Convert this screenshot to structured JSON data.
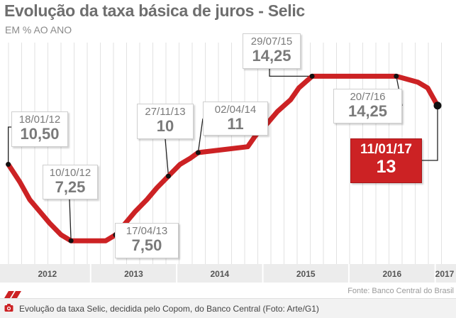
{
  "title": "Evolução da taxa básica de juros - Selic",
  "subtitle": "EM % AO ANO",
  "source": "Fonte: Banco Central do Brasil",
  "caption": "Evolução da taxa Selic, decidida pelo Copom, do Banco Central (Foto: Arte/G1)",
  "colors": {
    "line": "#cc2224",
    "highlight": "#cc2224",
    "axis_band": "#ececec",
    "grid": "#e2e2e2"
  },
  "icons": {
    "caption_icon": "camera-icon"
  },
  "chart_data": {
    "type": "line",
    "title": "Evolução da taxa básica de juros - Selic",
    "subtitle": "EM % AO ANO",
    "xlabel": "",
    "ylabel": "",
    "x_ticks": [
      "2012",
      "2013",
      "2014",
      "2015",
      "2016",
      "2017"
    ],
    "xlim": [
      "2012-01-01",
      "2017-01-11"
    ],
    "ylim": [
      6.5,
      15.5
    ],
    "grid": "vertical",
    "series": [
      {
        "points": [
          {
            "x": "2012-01-18",
            "y": 10.5
          },
          {
            "x": "2012-03-07",
            "y": 9.75
          },
          {
            "x": "2012-04-18",
            "y": 9.0
          },
          {
            "x": "2012-05-30",
            "y": 8.5
          },
          {
            "x": "2012-07-11",
            "y": 8.0
          },
          {
            "x": "2012-08-29",
            "y": 7.5
          },
          {
            "x": "2012-10-10",
            "y": 7.25
          },
          {
            "x": "2013-01-16",
            "y": 7.25
          },
          {
            "x": "2013-03-06",
            "y": 7.25
          },
          {
            "x": "2013-04-17",
            "y": 7.5
          },
          {
            "x": "2013-05-29",
            "y": 8.0
          },
          {
            "x": "2013-07-10",
            "y": 8.5
          },
          {
            "x": "2013-08-28",
            "y": 9.0
          },
          {
            "x": "2013-10-09",
            "y": 9.5
          },
          {
            "x": "2013-11-27",
            "y": 10.0
          },
          {
            "x": "2014-01-15",
            "y": 10.5
          },
          {
            "x": "2014-02-26",
            "y": 10.75
          },
          {
            "x": "2014-04-02",
            "y": 11.0
          },
          {
            "x": "2014-10-29",
            "y": 11.25
          },
          {
            "x": "2014-12-03",
            "y": 11.75
          },
          {
            "x": "2015-01-21",
            "y": 12.25
          },
          {
            "x": "2015-03-04",
            "y": 12.75
          },
          {
            "x": "2015-04-29",
            "y": 13.25
          },
          {
            "x": "2015-06-03",
            "y": 13.75
          },
          {
            "x": "2015-07-29",
            "y": 14.25
          },
          {
            "x": "2016-07-20",
            "y": 14.25
          },
          {
            "x": "2016-10-19",
            "y": 14.0
          },
          {
            "x": "2016-11-30",
            "y": 13.75
          },
          {
            "x": "2017-01-11",
            "y": 13.0
          }
        ]
      }
    ],
    "annotations": [
      {
        "date_label": "18/01/12",
        "value_label": "10,50",
        "x": "2012-01-18",
        "y": 10.5,
        "highlight": false
      },
      {
        "date_label": "10/10/12",
        "value_label": "7,25",
        "x": "2012-10-10",
        "y": 7.25,
        "highlight": false
      },
      {
        "date_label": "17/04/13",
        "value_label": "7,50",
        "x": "2013-04-17",
        "y": 7.5,
        "highlight": false
      },
      {
        "date_label": "27/11/13",
        "value_label": "10",
        "x": "2013-11-27",
        "y": 10.0,
        "highlight": false
      },
      {
        "date_label": "02/04/14",
        "value_label": "11",
        "x": "2014-04-02",
        "y": 11.0,
        "highlight": false
      },
      {
        "date_label": "29/07/15",
        "value_label": "14,25",
        "x": "2015-07-29",
        "y": 14.25,
        "highlight": false
      },
      {
        "date_label": "20/7/16",
        "value_label": "14,25",
        "x": "2016-07-20",
        "y": 14.25,
        "highlight": false
      },
      {
        "date_label": "11/01/17",
        "value_label": "13",
        "x": "2017-01-11",
        "y": 13.0,
        "highlight": true
      }
    ]
  }
}
